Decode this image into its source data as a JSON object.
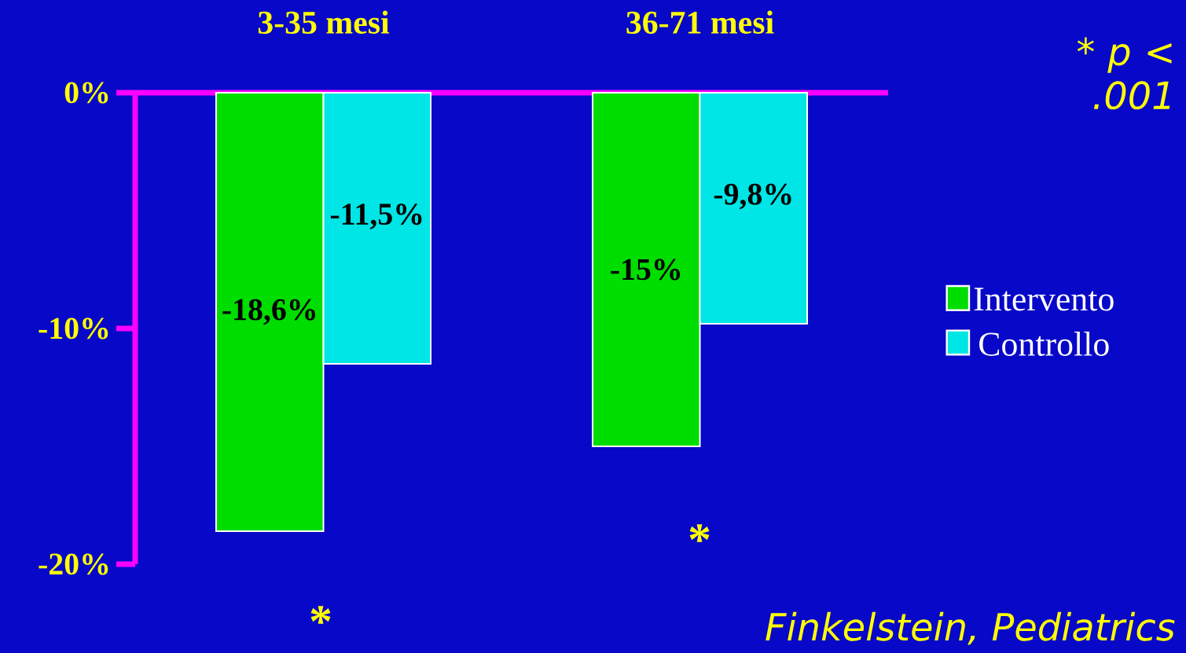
{
  "chart_data": {
    "type": "bar",
    "categories": [
      "3-35 mesi",
      "36-71 mesi"
    ],
    "series": [
      {
        "name": "Intervento",
        "color": "#00dd00",
        "values": [
          -18.6,
          -15
        ],
        "value_labels": [
          "-18,6%",
          "-15%"
        ]
      },
      {
        "name": "Controllo",
        "color": "#00e5e5",
        "values": [
          -11.5,
          -9.8
        ],
        "value_labels": [
          "-11,5%",
          "-9,8%"
        ]
      }
    ],
    "ylim": [
      -20,
      0
    ],
    "yticks": [
      {
        "value": 0,
        "label": "0%"
      },
      {
        "value": -10,
        "label": "-10%"
      },
      {
        "value": -20,
        "label": "-20%"
      }
    ],
    "legend": "right",
    "annotations": [
      "*",
      "*",
      "* p < .001",
      "Finkelstein, Pediatrics"
    ]
  }
}
